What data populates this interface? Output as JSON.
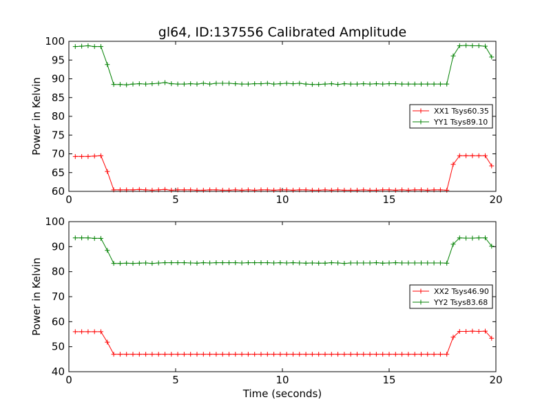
{
  "figure_title": "gl64, ID:137556 Calibrated Amplitude",
  "chart_data": [
    {
      "type": "line",
      "title": "gl64, ID:137556 Calibrated Amplitude",
      "xlabel": "",
      "ylabel": "Power in Kelvin",
      "xlim": [
        0,
        20
      ],
      "ylim": [
        60,
        100
      ],
      "xticks": [
        "0",
        "5",
        "10",
        "15",
        "20"
      ],
      "yticks": [
        "60",
        "65",
        "70",
        "75",
        "80",
        "85",
        "90",
        "95",
        "100"
      ],
      "grid": false,
      "legend_position": "center-right",
      "x": [
        0.3,
        0.6,
        0.9,
        1.2,
        1.5,
        1.8,
        2.1,
        2.4,
        2.7,
        3.0,
        3.3,
        3.6,
        3.9,
        4.2,
        4.5,
        4.8,
        5.1,
        5.4,
        5.7,
        6.0,
        6.3,
        6.6,
        6.9,
        7.2,
        7.5,
        7.8,
        8.1,
        8.4,
        8.7,
        9.0,
        9.3,
        9.6,
        9.9,
        10.2,
        10.5,
        10.8,
        11.1,
        11.4,
        11.7,
        12.0,
        12.3,
        12.6,
        12.9,
        13.2,
        13.5,
        13.8,
        14.1,
        14.4,
        14.7,
        15.0,
        15.3,
        15.6,
        15.9,
        16.2,
        16.5,
        16.8,
        17.1,
        17.4,
        17.7,
        18.0,
        18.3,
        18.6,
        18.9,
        19.2,
        19.5,
        19.8
      ],
      "series": [
        {
          "name": "XX1 Tsys60.35",
          "color": "#ff0000",
          "values": [
            69.3,
            69.3,
            69.3,
            69.4,
            69.5,
            65.3,
            60.4,
            60.4,
            60.4,
            60.4,
            60.5,
            60.4,
            60.3,
            60.4,
            60.5,
            60.3,
            60.4,
            60.4,
            60.4,
            60.3,
            60.3,
            60.4,
            60.4,
            60.3,
            60.3,
            60.4,
            60.3,
            60.4,
            60.3,
            60.4,
            60.4,
            60.3,
            60.4,
            60.4,
            60.3,
            60.4,
            60.4,
            60.3,
            60.3,
            60.4,
            60.3,
            60.4,
            60.3,
            60.3,
            60.3,
            60.4,
            60.3,
            60.3,
            60.4,
            60.4,
            60.3,
            60.4,
            60.3,
            60.4,
            60.4,
            60.3,
            60.4,
            60.4,
            60.3,
            67.2,
            69.5,
            69.5,
            69.5,
            69.5,
            69.5,
            66.8
          ]
        },
        {
          "name": "YY1 Tsys89.10",
          "color": "#008000",
          "values": [
            98.6,
            98.7,
            98.8,
            98.6,
            98.6,
            93.8,
            88.5,
            88.5,
            88.4,
            88.6,
            88.7,
            88.6,
            88.7,
            88.8,
            89.0,
            88.7,
            88.6,
            88.6,
            88.7,
            88.6,
            88.8,
            88.6,
            88.8,
            88.8,
            88.8,
            88.7,
            88.6,
            88.6,
            88.7,
            88.7,
            88.8,
            88.6,
            88.7,
            88.8,
            88.7,
            88.8,
            88.6,
            88.5,
            88.5,
            88.6,
            88.7,
            88.5,
            88.7,
            88.6,
            88.6,
            88.7,
            88.6,
            88.7,
            88.6,
            88.7,
            88.7,
            88.6,
            88.6,
            88.6,
            88.6,
            88.6,
            88.6,
            88.6,
            88.6,
            96.1,
            98.8,
            98.9,
            98.8,
            98.8,
            98.7,
            95.8
          ]
        }
      ]
    },
    {
      "type": "line",
      "title": "",
      "xlabel": "Time (seconds)",
      "ylabel": "Power in Kelvin",
      "xlim": [
        0,
        20
      ],
      "ylim": [
        40,
        100
      ],
      "xticks": [
        "0",
        "5",
        "10",
        "15",
        "20"
      ],
      "yticks": [
        "40",
        "50",
        "60",
        "70",
        "80",
        "90",
        "100"
      ],
      "grid": false,
      "legend_position": "center-right",
      "x": [
        0.3,
        0.6,
        0.9,
        1.2,
        1.5,
        1.8,
        2.1,
        2.4,
        2.7,
        3.0,
        3.3,
        3.6,
        3.9,
        4.2,
        4.5,
        4.8,
        5.1,
        5.4,
        5.7,
        6.0,
        6.3,
        6.6,
        6.9,
        7.2,
        7.5,
        7.8,
        8.1,
        8.4,
        8.7,
        9.0,
        9.3,
        9.6,
        9.9,
        10.2,
        10.5,
        10.8,
        11.1,
        11.4,
        11.7,
        12.0,
        12.3,
        12.6,
        12.9,
        13.2,
        13.5,
        13.8,
        14.1,
        14.4,
        14.7,
        15.0,
        15.3,
        15.6,
        15.9,
        16.2,
        16.5,
        16.8,
        17.1,
        17.4,
        17.7,
        18.0,
        18.3,
        18.6,
        18.9,
        19.2,
        19.5,
        19.8
      ],
      "series": [
        {
          "name": "XX2 Tsys46.90",
          "color": "#ff0000",
          "values": [
            56.0,
            56.0,
            56.0,
            56.0,
            56.0,
            51.8,
            47.0,
            47.0,
            47.0,
            47.0,
            47.0,
            47.0,
            47.0,
            47.0,
            47.0,
            47.0,
            47.0,
            47.0,
            47.0,
            47.0,
            47.0,
            47.0,
            47.0,
            47.0,
            47.0,
            47.0,
            47.0,
            47.0,
            47.0,
            47.0,
            47.0,
            47.0,
            47.0,
            47.0,
            47.0,
            47.0,
            47.0,
            47.0,
            47.0,
            47.0,
            47.0,
            47.0,
            47.0,
            47.0,
            47.0,
            47.0,
            47.0,
            47.0,
            47.0,
            47.0,
            47.0,
            47.0,
            47.0,
            47.0,
            47.0,
            47.0,
            47.0,
            47.0,
            47.0,
            53.8,
            56.1,
            56.1,
            56.2,
            56.1,
            56.2,
            53.4
          ]
        },
        {
          "name": "YY2 Tsys83.68",
          "color": "#008000",
          "values": [
            93.5,
            93.5,
            93.5,
            93.3,
            93.3,
            88.5,
            83.3,
            83.3,
            83.4,
            83.3,
            83.4,
            83.5,
            83.3,
            83.5,
            83.6,
            83.6,
            83.6,
            83.6,
            83.5,
            83.4,
            83.6,
            83.5,
            83.6,
            83.6,
            83.6,
            83.6,
            83.5,
            83.6,
            83.6,
            83.6,
            83.6,
            83.5,
            83.6,
            83.5,
            83.6,
            83.5,
            83.4,
            83.5,
            83.4,
            83.4,
            83.6,
            83.5,
            83.3,
            83.5,
            83.5,
            83.5,
            83.5,
            83.6,
            83.4,
            83.5,
            83.6,
            83.5,
            83.5,
            83.5,
            83.5,
            83.5,
            83.5,
            83.5,
            83.4,
            91.0,
            93.5,
            93.4,
            93.4,
            93.5,
            93.5,
            90.2
          ]
        }
      ]
    }
  ]
}
